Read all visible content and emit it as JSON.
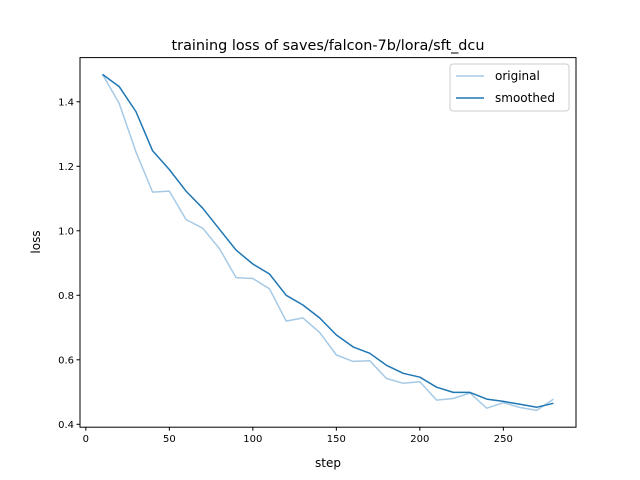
{
  "chart_data": {
    "type": "line",
    "title": "training loss of saves/falcon-7b/lora/sft_dcu",
    "xlabel": "step",
    "ylabel": "loss",
    "xlim": [
      -3.5,
      293.5
    ],
    "ylim": [
      0.391,
      1.537
    ],
    "xticks": [
      0,
      50,
      100,
      150,
      200,
      250
    ],
    "yticks": [
      0.4,
      0.6,
      0.8,
      1.0,
      1.2,
      1.4
    ],
    "xtick_labels": [
      "0",
      "50",
      "100",
      "150",
      "200",
      "250"
    ],
    "ytick_labels": [
      "0.4",
      "0.6",
      "0.8",
      "1.0",
      "1.2",
      "1.4"
    ],
    "grid": false,
    "legend_placement": "top-right",
    "x": [
      10,
      20,
      30,
      40,
      50,
      60,
      70,
      80,
      90,
      100,
      110,
      120,
      130,
      140,
      150,
      160,
      170,
      180,
      190,
      200,
      210,
      220,
      230,
      240,
      250,
      260,
      270,
      280
    ],
    "series": [
      {
        "name": "original",
        "color": "#a6cae6",
        "values": [
          1.485,
          1.395,
          1.245,
          1.12,
          1.123,
          1.035,
          1.008,
          0.945,
          0.855,
          0.852,
          0.82,
          0.72,
          0.73,
          0.685,
          0.615,
          0.595,
          0.597,
          0.542,
          0.527,
          0.532,
          0.475,
          0.48,
          0.497,
          0.45,
          0.467,
          0.452,
          0.443,
          0.478
        ]
      },
      {
        "name": "smoothed",
        "color": "#1f77b4",
        "values": [
          1.485,
          1.447,
          1.37,
          1.248,
          1.19,
          1.123,
          1.07,
          1.005,
          0.94,
          0.897,
          0.866,
          0.8,
          0.77,
          0.73,
          0.677,
          0.64,
          0.62,
          0.583,
          0.558,
          0.546,
          0.515,
          0.499,
          0.499,
          0.478,
          0.471,
          0.462,
          0.453,
          0.465
        ]
      }
    ]
  }
}
